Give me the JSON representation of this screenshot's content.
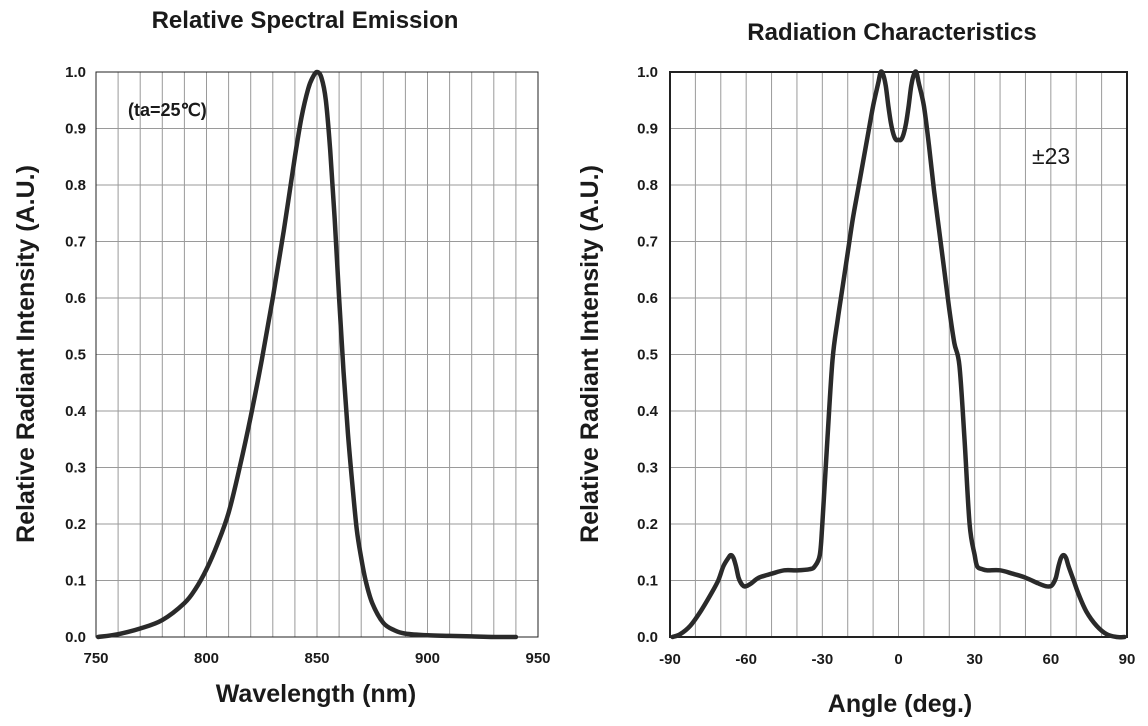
{
  "chart_data": [
    {
      "type": "line",
      "title": "Relative Spectral Emission",
      "xlabel": "Wavelength (nm)",
      "ylabel": "Relative Radiant Intensity (A.U.)",
      "annotation": "(ta=25℃)",
      "xlim": [
        750,
        950
      ],
      "ylim": [
        0,
        1.0
      ],
      "xticks": [
        "750",
        "800",
        "850",
        "900",
        "950"
      ],
      "yticks": [
        "0.0",
        "0.1",
        "0.2",
        "0.3",
        "0.4",
        "0.5",
        "0.6",
        "0.7",
        "0.8",
        "0.9",
        "1.0"
      ],
      "grid": true,
      "series": [
        {
          "x": [
            751,
            760,
            770,
            780,
            790,
            795,
            800,
            805,
            810,
            815,
            820,
            825,
            830,
            835,
            840,
            843,
            846,
            848,
            850,
            852,
            854,
            856,
            858,
            860,
            862,
            864,
            866,
            868,
            870,
            872,
            875,
            880,
            885,
            890,
            900,
            910,
            920,
            930,
            940
          ],
          "y": [
            0.0,
            0.005,
            0.015,
            0.03,
            0.06,
            0.085,
            0.12,
            0.165,
            0.22,
            0.3,
            0.39,
            0.49,
            0.6,
            0.72,
            0.85,
            0.92,
            0.97,
            0.99,
            1.0,
            0.99,
            0.95,
            0.86,
            0.74,
            0.6,
            0.47,
            0.36,
            0.27,
            0.19,
            0.14,
            0.1,
            0.06,
            0.025,
            0.012,
            0.006,
            0.003,
            0.002,
            0.001,
            0.0,
            0.0
          ]
        }
      ]
    },
    {
      "type": "line",
      "title": "Radiation  Characteristics",
      "xlabel": "Angle (deg.)",
      "ylabel": "Relative Radiant Intensity (A.U.)",
      "annotation": "±23",
      "xlim": [
        -90,
        90
      ],
      "ylim": [
        0,
        1.0
      ],
      "xticks": [
        "-90",
        "-60",
        "-30",
        "0",
        "30",
        "60",
        "90"
      ],
      "yticks": [
        "0.0",
        "0.1",
        "0.2",
        "0.3",
        "0.4",
        "0.5",
        "0.6",
        "0.7",
        "0.8",
        "0.9",
        "1.0"
      ],
      "grid": true,
      "series": [
        {
          "x": [
            -89,
            -86,
            -82,
            -78,
            -74,
            -71,
            -69,
            -67,
            -66,
            -65,
            -64,
            -63,
            -62,
            -61,
            -60,
            -58,
            -55,
            -50,
            -45,
            -40,
            -35,
            -33,
            -31,
            -30,
            -28,
            -26,
            -24,
            -22,
            -20,
            -18,
            -16,
            -14,
            -12,
            -10,
            -8,
            -7,
            -6,
            -5,
            -4,
            -3,
            -2,
            -1,
            0,
            1,
            2,
            3,
            4,
            5,
            6,
            7,
            8,
            10,
            12,
            14,
            16,
            18,
            20,
            22,
            24,
            26,
            28,
            30,
            31,
            33,
            35,
            40,
            45,
            50,
            55,
            58,
            60,
            61,
            62,
            63,
            64,
            65,
            66,
            67,
            69,
            71,
            74,
            78,
            82,
            86,
            89
          ],
          "y": [
            0.0,
            0.005,
            0.02,
            0.045,
            0.075,
            0.1,
            0.125,
            0.14,
            0.145,
            0.14,
            0.125,
            0.105,
            0.095,
            0.09,
            0.09,
            0.095,
            0.105,
            0.112,
            0.118,
            0.118,
            0.12,
            0.125,
            0.145,
            0.2,
            0.35,
            0.49,
            0.56,
            0.62,
            0.68,
            0.74,
            0.79,
            0.84,
            0.89,
            0.94,
            0.98,
            1.0,
            0.995,
            0.975,
            0.94,
            0.91,
            0.89,
            0.88,
            0.88,
            0.88,
            0.89,
            0.91,
            0.94,
            0.975,
            0.995,
            1.0,
            0.98,
            0.94,
            0.87,
            0.79,
            0.72,
            0.65,
            0.58,
            0.52,
            0.48,
            0.35,
            0.2,
            0.145,
            0.125,
            0.12,
            0.118,
            0.118,
            0.112,
            0.105,
            0.095,
            0.09,
            0.09,
            0.095,
            0.105,
            0.125,
            0.14,
            0.145,
            0.14,
            0.125,
            0.1,
            0.075,
            0.045,
            0.02,
            0.005,
            0.0,
            0.0
          ]
        }
      ]
    }
  ]
}
